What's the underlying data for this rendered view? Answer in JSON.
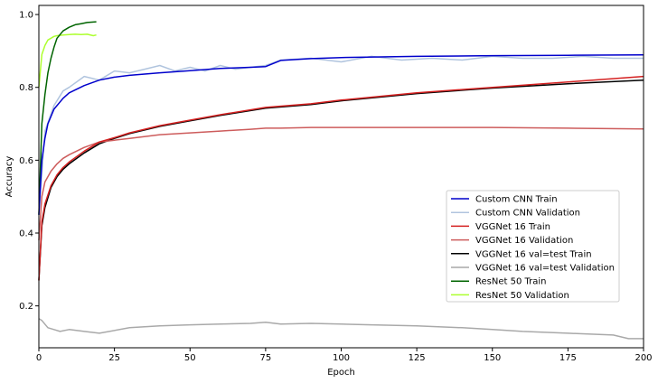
{
  "chart_data": {
    "type": "line",
    "xlabel": "Epoch",
    "ylabel": "Accuracy",
    "xlim": [
      0,
      200
    ],
    "ylim": [
      0.085,
      1.025
    ],
    "xticks": [
      0,
      25,
      50,
      75,
      100,
      125,
      150,
      175,
      200
    ],
    "yticks": [
      0.2,
      0.4,
      0.6,
      0.8,
      1.0
    ],
    "xtick_labels": [
      "0",
      "25",
      "50",
      "75",
      "100",
      "125",
      "150",
      "175",
      "200"
    ],
    "ytick_labels": [
      "0.2",
      "0.4",
      "0.6",
      "0.8",
      "1.0"
    ],
    "grid": false,
    "legend_position": "lower-right",
    "series": [
      {
        "name": "Custom CNN Train",
        "color": "#0000cc",
        "x": [
          0,
          1,
          2,
          3,
          5,
          8,
          10,
          15,
          20,
          25,
          30,
          40,
          50,
          60,
          70,
          75,
          80,
          90,
          100,
          125,
          150,
          175,
          200
        ],
        "y": [
          0.45,
          0.6,
          0.66,
          0.7,
          0.74,
          0.77,
          0.785,
          0.805,
          0.82,
          0.828,
          0.833,
          0.84,
          0.846,
          0.852,
          0.855,
          0.857,
          0.874,
          0.879,
          0.882,
          0.885,
          0.887,
          0.888,
          0.889
        ]
      },
      {
        "name": "Custom CNN Validation",
        "color": "#b0c4de",
        "x": [
          0,
          2,
          5,
          8,
          10,
          15,
          20,
          25,
          30,
          35,
          40,
          45,
          50,
          55,
          60,
          65,
          70,
          75,
          80,
          90,
          100,
          110,
          120,
          130,
          140,
          150,
          160,
          170,
          180,
          190,
          200
        ],
        "y": [
          0.45,
          0.68,
          0.75,
          0.79,
          0.8,
          0.83,
          0.82,
          0.845,
          0.84,
          0.85,
          0.86,
          0.845,
          0.855,
          0.845,
          0.86,
          0.85,
          0.855,
          0.86,
          0.875,
          0.88,
          0.87,
          0.885,
          0.875,
          0.88,
          0.875,
          0.885,
          0.88,
          0.88,
          0.885,
          0.88,
          0.88
        ]
      },
      {
        "name": "VGGNet 16 Train",
        "color": "#d42020",
        "x": [
          0,
          1,
          2,
          4,
          6,
          8,
          10,
          15,
          20,
          25,
          30,
          40,
          50,
          60,
          75,
          90,
          100,
          125,
          150,
          175,
          200
        ],
        "y": [
          0.27,
          0.43,
          0.48,
          0.53,
          0.56,
          0.58,
          0.595,
          0.625,
          0.65,
          0.662,
          0.675,
          0.695,
          0.71,
          0.725,
          0.745,
          0.755,
          0.765,
          0.785,
          0.8,
          0.815,
          0.83
        ]
      },
      {
        "name": "VGGNet 16 Validation",
        "color": "#cd5c5c",
        "x": [
          0,
          1,
          2,
          4,
          6,
          8,
          10,
          15,
          20,
          25,
          30,
          40,
          50,
          60,
          70,
          75,
          80,
          90,
          100,
          125,
          150,
          175,
          200
        ],
        "y": [
          0.38,
          0.5,
          0.54,
          0.57,
          0.59,
          0.605,
          0.615,
          0.635,
          0.65,
          0.655,
          0.66,
          0.67,
          0.675,
          0.68,
          0.685,
          0.688,
          0.688,
          0.69,
          0.69,
          0.69,
          0.69,
          0.688,
          0.686
        ]
      },
      {
        "name": "VGGNet 16 val=test Train",
        "color": "#000000",
        "x": [
          0,
          1,
          2,
          4,
          6,
          8,
          10,
          15,
          20,
          25,
          30,
          40,
          50,
          60,
          75,
          90,
          100,
          125,
          150,
          175,
          200
        ],
        "y": [
          0.27,
          0.42,
          0.47,
          0.525,
          0.555,
          0.575,
          0.59,
          0.62,
          0.645,
          0.66,
          0.673,
          0.693,
          0.708,
          0.723,
          0.743,
          0.753,
          0.763,
          0.783,
          0.798,
          0.81,
          0.82
        ]
      },
      {
        "name": "VGGNet 16 val=test Validation",
        "color": "#a9a9a9",
        "x": [
          0,
          1,
          3,
          5,
          7,
          10,
          15,
          20,
          30,
          40,
          50,
          60,
          70,
          75,
          80,
          90,
          100,
          110,
          125,
          140,
          150,
          160,
          175,
          190,
          195,
          200
        ],
        "y": [
          0.165,
          0.16,
          0.14,
          0.135,
          0.13,
          0.135,
          0.13,
          0.125,
          0.14,
          0.145,
          0.148,
          0.15,
          0.152,
          0.155,
          0.15,
          0.152,
          0.15,
          0.148,
          0.145,
          0.14,
          0.135,
          0.13,
          0.125,
          0.12,
          0.11,
          0.11
        ]
      },
      {
        "name": "ResNet 50 Train",
        "color": "#006400",
        "x": [
          0,
          1,
          2,
          3,
          4,
          5,
          6,
          8,
          10,
          12,
          14,
          16,
          19
        ],
        "y": [
          0.45,
          0.7,
          0.78,
          0.84,
          0.88,
          0.91,
          0.935,
          0.955,
          0.965,
          0.972,
          0.975,
          0.978,
          0.98
        ]
      },
      {
        "name": "ResNet 50 Validation",
        "color": "#adff2f",
        "x": [
          0,
          1,
          2,
          3,
          4,
          5,
          6,
          8,
          10,
          12,
          14,
          16,
          18,
          19
        ],
        "y": [
          0.8,
          0.89,
          0.915,
          0.93,
          0.935,
          0.94,
          0.942,
          0.944,
          0.945,
          0.946,
          0.945,
          0.946,
          0.942,
          0.944
        ]
      }
    ]
  }
}
